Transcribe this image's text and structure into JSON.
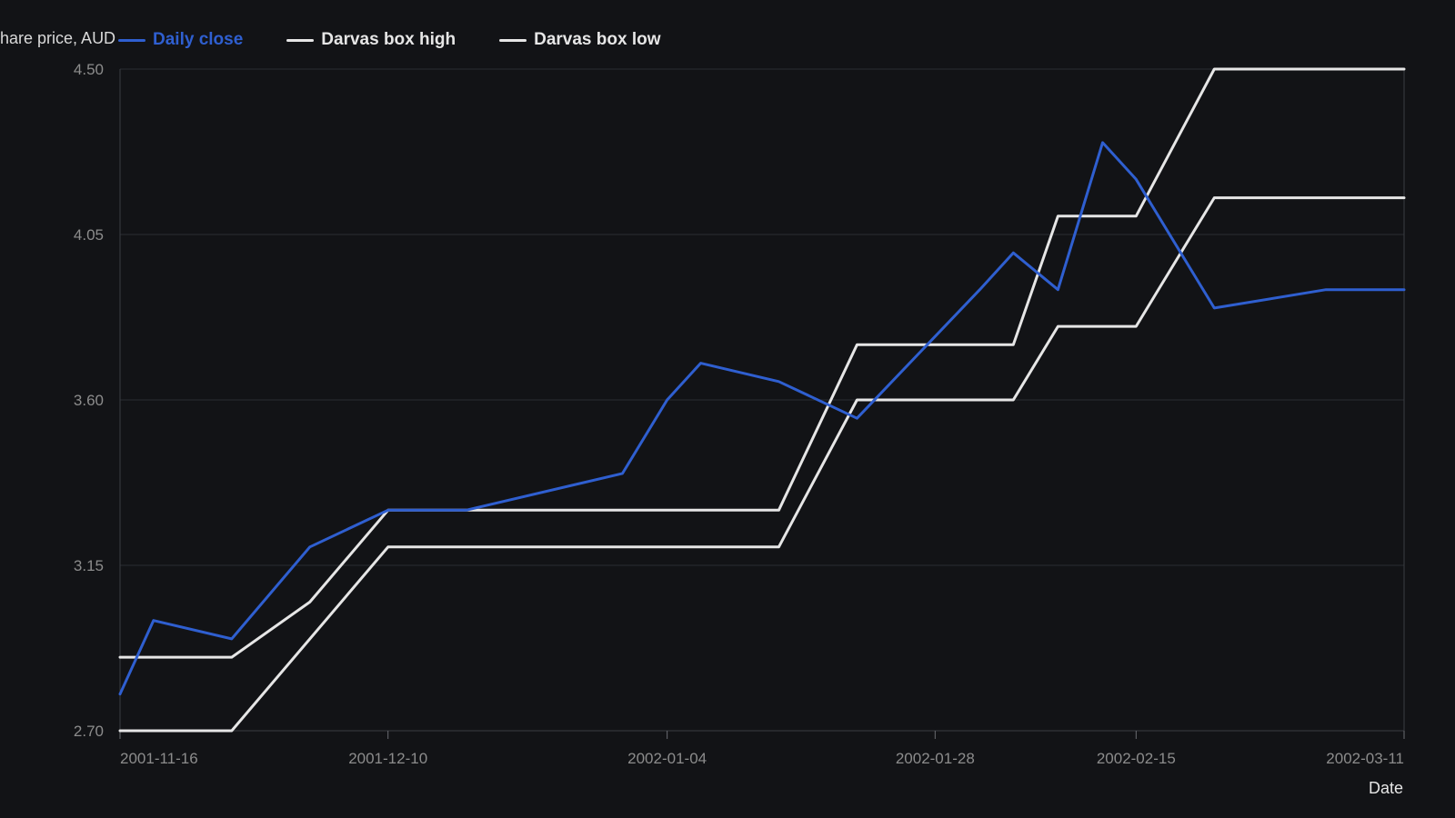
{
  "chart_data": {
    "type": "line",
    "ylabel": "Share price, AUD",
    "xlabel": "Date",
    "x": [
      "2001-11-16",
      "2001-11-19",
      "2001-11-26",
      "2001-11-30",
      "2001-12-10",
      "2001-12-17",
      "2001-12-31",
      "2002-01-04",
      "2002-01-07",
      "2002-01-14",
      "2002-01-21",
      "2002-02-01",
      "2002-02-04",
      "2002-02-08",
      "2002-02-15",
      "2002-02-18",
      "2002-02-25",
      "2002-03-04",
      "2002-03-11"
    ],
    "x_ticks": [
      "2001-11-16",
      "2001-12-10",
      "2002-01-04",
      "2002-01-28",
      "2002-02-15",
      "2002-03-11"
    ],
    "y_ticks": [
      2.7,
      3.15,
      3.6,
      4.05,
      4.5
    ],
    "ylim": [
      2.7,
      4.5
    ],
    "grid": "horizontal",
    "legend_position": "top",
    "series": [
      {
        "name": "Daily close",
        "color": "#2f5fd0",
        "points": [
          [
            "2001-11-16",
            2.8
          ],
          [
            "2001-11-19",
            3.0
          ],
          [
            "2001-11-26",
            2.95
          ],
          [
            "2001-12-03",
            3.2
          ],
          [
            "2001-12-10",
            3.3
          ],
          [
            "2001-12-17",
            3.3
          ],
          [
            "2001-12-31",
            3.4
          ],
          [
            "2002-01-04",
            3.6
          ],
          [
            "2002-01-07",
            3.7
          ],
          [
            "2002-01-14",
            3.65
          ],
          [
            "2002-01-21",
            3.55
          ],
          [
            "2002-02-01",
            3.9
          ],
          [
            "2002-02-04",
            4.0
          ],
          [
            "2002-02-08",
            3.9
          ],
          [
            "2002-02-12",
            4.3
          ],
          [
            "2002-02-15",
            4.2
          ],
          [
            "2002-02-22",
            3.85
          ],
          [
            "2002-03-04",
            3.9
          ],
          [
            "2002-03-11",
            3.9
          ]
        ]
      },
      {
        "name": "Darvas box high",
        "color": "#e6e6e6",
        "points": [
          [
            "2001-11-16",
            2.9
          ],
          [
            "2001-11-26",
            2.9
          ],
          [
            "2001-12-03",
            3.05
          ],
          [
            "2001-12-10",
            3.3
          ],
          [
            "2002-01-14",
            3.3
          ],
          [
            "2002-01-21",
            3.75
          ],
          [
            "2002-02-04",
            3.75
          ],
          [
            "2002-02-08",
            4.1
          ],
          [
            "2002-02-15",
            4.1
          ],
          [
            "2002-02-22",
            4.5
          ],
          [
            "2002-03-11",
            4.5
          ]
        ]
      },
      {
        "name": "Darvas box low",
        "color": "#e6e6e6",
        "points": [
          [
            "2001-11-16",
            2.7
          ],
          [
            "2001-11-26",
            2.7
          ],
          [
            "2001-12-10",
            3.2
          ],
          [
            "2002-01-14",
            3.2
          ],
          [
            "2002-01-21",
            3.6
          ],
          [
            "2002-02-04",
            3.6
          ],
          [
            "2002-02-08",
            3.8
          ],
          [
            "2002-02-15",
            3.8
          ],
          [
            "2002-02-22",
            4.15
          ],
          [
            "2002-03-11",
            4.15
          ]
        ]
      }
    ]
  },
  "legend": {
    "items": [
      {
        "label": "Daily close",
        "color": "#2f5fd0"
      },
      {
        "label": "Darvas box high",
        "color": "#e6e6e6"
      },
      {
        "label": "Darvas box low",
        "color": "#e6e6e6"
      }
    ]
  },
  "axes": {
    "ylabel": "Share price, AUD",
    "xlabel": "Date"
  }
}
